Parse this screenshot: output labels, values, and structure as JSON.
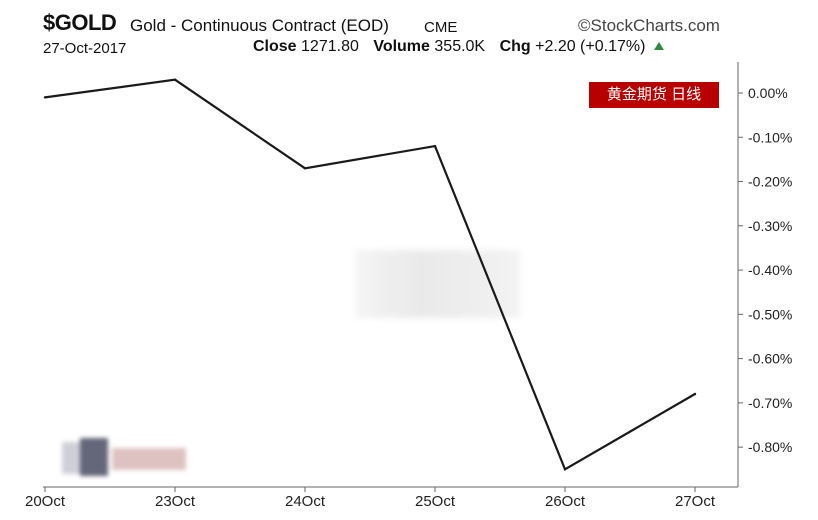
{
  "header": {
    "symbol": "$GOLD",
    "description": "Gold - Continuous Contract (EOD)",
    "exchange": "CME",
    "brand": "©StockCharts.com",
    "date": "27-Oct-2017",
    "close_label": "Close",
    "close_value": "1271.80",
    "volume_label": "Volume",
    "volume_value": "355.0K",
    "chg_label": "Chg",
    "chg_value": "+2.20 (+0.17%)"
  },
  "badge": "黄金期货  日线",
  "colors": {
    "line": "#1a1a1a",
    "badge": "#b80000",
    "up": "#2e8b3d"
  },
  "chart_data": {
    "type": "line",
    "categories": [
      "20Oct",
      "23Oct",
      "24Oct",
      "25Oct",
      "26Oct",
      "27Oct"
    ],
    "series": [
      {
        "values": [
          -0.01,
          0.03,
          -0.17,
          -0.12,
          -0.85,
          -0.68
        ]
      }
    ],
    "y_ticks": [
      "0.00%",
      "-0.10%",
      "-0.20%",
      "-0.30%",
      "-0.40%",
      "-0.50%",
      "-0.60%",
      "-0.70%",
      "-0.80%"
    ],
    "ylim": [
      -0.89,
      0.07
    ],
    "y_axis_side": "right",
    "grid": false
  }
}
